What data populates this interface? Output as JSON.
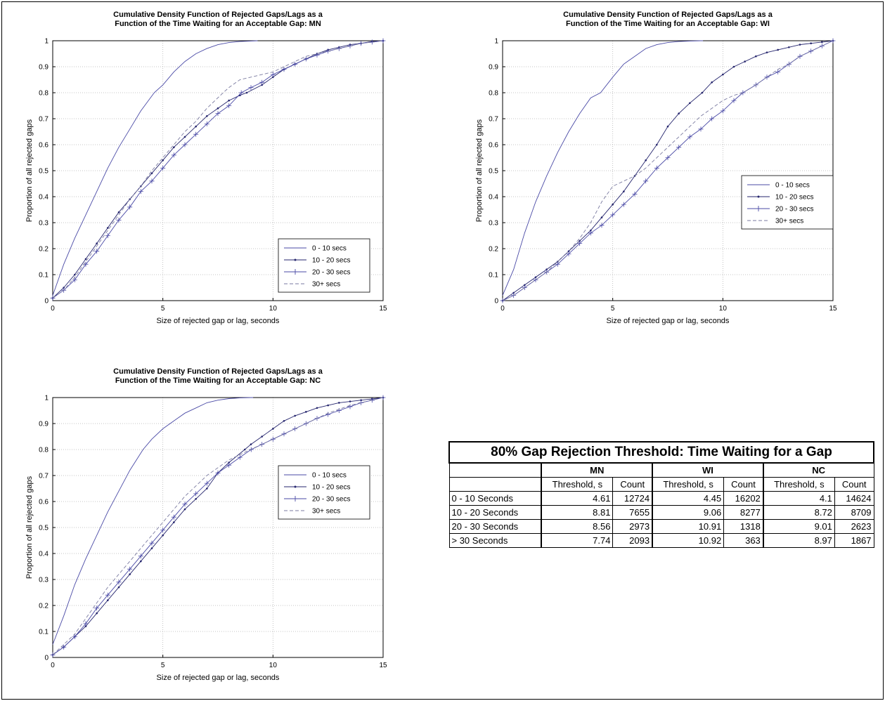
{
  "chart_data": [
    {
      "type": "line",
      "title_lines": [
        "Cumulative Density Function of Rejected Gaps/Lags as a",
        "Function of the Time Waiting for an Acceptable Gap: MN"
      ],
      "xlabel": "Size of rejected gap or lag, seconds",
      "ylabel": "Proportion of all rejected gaps",
      "xlim": [
        0,
        15
      ],
      "ylim": [
        0,
        1
      ],
      "xticks": [
        0,
        5,
        10,
        15
      ],
      "yticks": [
        0,
        0.1,
        0.2,
        0.3,
        0.4,
        0.5,
        0.6,
        0.7,
        0.8,
        0.9,
        1
      ],
      "grid": true,
      "legend_position": "lower-right",
      "series": [
        {
          "name": "0 - 10 secs",
          "x": [
            0,
            0.5,
            1,
            1.5,
            2,
            2.5,
            3,
            3.5,
            4,
            4.61,
            5,
            5.5,
            6,
            6.5,
            7,
            7.5,
            8,
            8.5,
            9,
            9.3
          ],
          "y": [
            0.02,
            0.14,
            0.24,
            0.33,
            0.42,
            0.51,
            0.59,
            0.66,
            0.73,
            0.8,
            0.83,
            0.88,
            0.92,
            0.95,
            0.97,
            0.985,
            0.993,
            0.997,
            0.999,
            1.0
          ]
        },
        {
          "name": "10 - 20 secs",
          "x": [
            0,
            0.5,
            1,
            1.5,
            2,
            2.5,
            3,
            3.5,
            4,
            4.5,
            5,
            5.5,
            6,
            6.5,
            7,
            7.5,
            8,
            8.5,
            8.81,
            9.5,
            10,
            10.5,
            11,
            11.5,
            12,
            12.5,
            13,
            13.5,
            14,
            14.5,
            15
          ],
          "y": [
            0.01,
            0.05,
            0.1,
            0.16,
            0.22,
            0.28,
            0.34,
            0.39,
            0.44,
            0.49,
            0.54,
            0.59,
            0.63,
            0.67,
            0.71,
            0.74,
            0.77,
            0.79,
            0.8,
            0.83,
            0.86,
            0.89,
            0.91,
            0.93,
            0.95,
            0.965,
            0.975,
            0.985,
            0.99,
            0.997,
            1.0
          ]
        },
        {
          "name": "20 - 30 secs",
          "x": [
            0,
            0.5,
            1,
            1.5,
            2,
            2.5,
            3,
            3.5,
            4,
            4.5,
            5,
            5.5,
            6,
            6.5,
            7,
            7.5,
            8,
            8.56,
            9,
            9.5,
            10,
            10.5,
            11,
            11.5,
            12,
            12.5,
            13,
            13.5,
            14,
            14.5,
            15
          ],
          "y": [
            0.01,
            0.04,
            0.08,
            0.14,
            0.19,
            0.25,
            0.31,
            0.36,
            0.42,
            0.46,
            0.51,
            0.56,
            0.6,
            0.64,
            0.68,
            0.72,
            0.75,
            0.8,
            0.82,
            0.84,
            0.87,
            0.89,
            0.91,
            0.93,
            0.945,
            0.96,
            0.97,
            0.98,
            0.99,
            0.995,
            1.0
          ]
        },
        {
          "name": "30+ secs",
          "x": [
            0,
            0.5,
            1,
            1.5,
            2,
            2.5,
            3,
            3.5,
            4,
            4.5,
            5,
            5.5,
            6,
            6.5,
            7,
            7.74,
            8,
            8.5,
            9,
            9.5,
            10,
            10.5,
            11,
            11.5,
            12,
            12.5,
            13,
            13.5,
            14,
            14.5,
            15
          ],
          "y": [
            0.01,
            0.04,
            0.09,
            0.15,
            0.21,
            0.27,
            0.33,
            0.39,
            0.44,
            0.5,
            0.55,
            0.6,
            0.65,
            0.69,
            0.74,
            0.8,
            0.82,
            0.85,
            0.86,
            0.87,
            0.88,
            0.9,
            0.92,
            0.94,
            0.95,
            0.96,
            0.97,
            0.98,
            0.99,
            0.995,
            1.0
          ]
        }
      ]
    },
    {
      "type": "line",
      "title_lines": [
        "Cumulative Density Function of Rejected Gaps/Lags as a",
        "Function of the Time Waiting for an Acceptable Gap: WI"
      ],
      "xlabel": "Size of rejected gap or lag, seconds",
      "ylabel": "Proportion of all rejected gaps",
      "xlim": [
        0,
        15
      ],
      "ylim": [
        0,
        1
      ],
      "xticks": [
        0,
        5,
        10,
        15
      ],
      "yticks": [
        0,
        0.1,
        0.2,
        0.3,
        0.4,
        0.5,
        0.6,
        0.7,
        0.8,
        0.9,
        1
      ],
      "grid": true,
      "legend_position": "right",
      "series": [
        {
          "name": "0 - 10 secs",
          "x": [
            0,
            0.5,
            1,
            1.5,
            2,
            2.5,
            3,
            3.5,
            4,
            4.45,
            5,
            5.5,
            6,
            6.5,
            7,
            7.5,
            8,
            8.5,
            9,
            9.1
          ],
          "y": [
            0.02,
            0.12,
            0.26,
            0.38,
            0.48,
            0.57,
            0.65,
            0.72,
            0.78,
            0.8,
            0.86,
            0.91,
            0.94,
            0.97,
            0.985,
            0.993,
            0.997,
            0.999,
            1.0,
            1.0
          ]
        },
        {
          "name": "10 - 20 secs",
          "x": [
            0,
            0.5,
            1,
            1.5,
            2,
            2.5,
            3,
            3.5,
            4,
            4.5,
            5,
            5.5,
            6,
            6.5,
            7,
            7.5,
            8,
            8.5,
            9.06,
            9.5,
            10,
            10.5,
            11,
            11.5,
            12,
            12.5,
            13,
            13.5,
            14,
            14.5,
            15
          ],
          "y": [
            0.0,
            0.03,
            0.06,
            0.09,
            0.12,
            0.15,
            0.19,
            0.23,
            0.27,
            0.32,
            0.37,
            0.42,
            0.48,
            0.54,
            0.6,
            0.67,
            0.72,
            0.76,
            0.8,
            0.84,
            0.87,
            0.9,
            0.92,
            0.94,
            0.955,
            0.965,
            0.975,
            0.985,
            0.99,
            0.995,
            1.0
          ]
        },
        {
          "name": "20 - 30 secs",
          "x": [
            0,
            0.5,
            1,
            1.5,
            2,
            2.5,
            3,
            3.5,
            4,
            4.5,
            5,
            5.5,
            6,
            6.5,
            7,
            7.5,
            8,
            8.5,
            9,
            9.5,
            10,
            10.5,
            10.91,
            11.5,
            12,
            12.5,
            13,
            13.5,
            14,
            14.5,
            15
          ],
          "y": [
            0.0,
            0.02,
            0.05,
            0.08,
            0.11,
            0.14,
            0.18,
            0.22,
            0.26,
            0.29,
            0.33,
            0.37,
            0.41,
            0.46,
            0.51,
            0.55,
            0.59,
            0.63,
            0.66,
            0.7,
            0.73,
            0.77,
            0.8,
            0.83,
            0.86,
            0.88,
            0.91,
            0.94,
            0.96,
            0.98,
            1.0
          ]
        },
        {
          "name": "30+ secs",
          "x": [
            0,
            0.5,
            1,
            1.5,
            2,
            2.5,
            3,
            3.5,
            4,
            4.5,
            5,
            5.5,
            6,
            6.5,
            7,
            7.5,
            8,
            8.5,
            9,
            9.5,
            10,
            10.5,
            10.92,
            11.5,
            12,
            12.5,
            13,
            13.5,
            14,
            14.5,
            15
          ],
          "y": [
            0.0,
            0.02,
            0.05,
            0.08,
            0.11,
            0.15,
            0.19,
            0.24,
            0.3,
            0.38,
            0.44,
            0.46,
            0.48,
            0.51,
            0.55,
            0.59,
            0.63,
            0.67,
            0.71,
            0.74,
            0.77,
            0.79,
            0.8,
            0.83,
            0.86,
            0.89,
            0.91,
            0.94,
            0.96,
            0.98,
            1.0
          ]
        }
      ]
    },
    {
      "type": "line",
      "title_lines": [
        "Cumulative Density Function of Rejected Gaps/Lags as a",
        "Function of the Time Waiting for an Acceptable Gap: NC"
      ],
      "xlabel": "Size of rejected gap or lag, seconds",
      "ylabel": "Proportion of all rejected gaps",
      "xlim": [
        0,
        15
      ],
      "ylim": [
        0,
        1
      ],
      "xticks": [
        0,
        5,
        10,
        15
      ],
      "yticks": [
        0,
        0.1,
        0.2,
        0.3,
        0.4,
        0.5,
        0.6,
        0.7,
        0.8,
        0.9,
        1
      ],
      "grid": true,
      "legend_position": "right",
      "series": [
        {
          "name": "0 - 10 secs",
          "x": [
            0,
            0.5,
            1,
            1.5,
            2,
            2.5,
            3,
            3.5,
            4.1,
            4.5,
            5,
            5.5,
            6,
            6.5,
            7,
            7.5,
            8,
            8.5,
            9,
            9.1
          ],
          "y": [
            0.05,
            0.16,
            0.28,
            0.38,
            0.47,
            0.56,
            0.64,
            0.72,
            0.8,
            0.84,
            0.88,
            0.91,
            0.94,
            0.96,
            0.98,
            0.99,
            0.996,
            0.999,
            1.0,
            1.0
          ]
        },
        {
          "name": "10 - 20 secs",
          "x": [
            0,
            0.5,
            1,
            1.5,
            2,
            2.5,
            3,
            3.5,
            4,
            4.5,
            5,
            5.5,
            6,
            6.5,
            7,
            7.5,
            8,
            8.72,
            9,
            9.5,
            10,
            10.5,
            11,
            11.5,
            12,
            12.5,
            13,
            13.5,
            14,
            14.5,
            15
          ],
          "y": [
            0.01,
            0.04,
            0.08,
            0.12,
            0.17,
            0.22,
            0.27,
            0.32,
            0.37,
            0.42,
            0.47,
            0.52,
            0.57,
            0.61,
            0.65,
            0.71,
            0.75,
            0.8,
            0.82,
            0.85,
            0.88,
            0.91,
            0.93,
            0.945,
            0.96,
            0.97,
            0.98,
            0.985,
            0.99,
            0.995,
            1.0
          ]
        },
        {
          "name": "20 - 30 secs",
          "x": [
            0,
            0.5,
            1,
            1.5,
            2,
            2.5,
            3,
            3.5,
            4,
            4.5,
            5,
            5.5,
            6,
            6.5,
            7,
            7.5,
            8,
            8.5,
            9.01,
            9.5,
            10,
            10.5,
            11,
            11.5,
            12,
            12.5,
            13,
            13.5,
            14,
            14.5,
            15
          ],
          "y": [
            0.01,
            0.04,
            0.08,
            0.13,
            0.19,
            0.24,
            0.29,
            0.34,
            0.39,
            0.44,
            0.49,
            0.54,
            0.59,
            0.63,
            0.67,
            0.71,
            0.74,
            0.77,
            0.8,
            0.82,
            0.84,
            0.86,
            0.88,
            0.9,
            0.92,
            0.935,
            0.95,
            0.965,
            0.98,
            0.99,
            1.0
          ]
        },
        {
          "name": "30+ secs",
          "x": [
            0,
            0.5,
            1,
            1.5,
            2,
            2.5,
            3,
            3.5,
            4,
            4.5,
            5,
            5.5,
            6,
            6.5,
            7,
            7.5,
            8,
            8.5,
            8.97,
            9.5,
            10,
            10.5,
            11,
            11.5,
            12,
            12.5,
            13,
            13.5,
            14,
            14.5,
            15
          ],
          "y": [
            0.01,
            0.05,
            0.09,
            0.15,
            0.21,
            0.27,
            0.32,
            0.37,
            0.42,
            0.47,
            0.52,
            0.57,
            0.62,
            0.66,
            0.7,
            0.73,
            0.76,
            0.78,
            0.8,
            0.82,
            0.84,
            0.86,
            0.88,
            0.9,
            0.92,
            0.94,
            0.955,
            0.97,
            0.98,
            0.99,
            1.0
          ]
        }
      ]
    }
  ],
  "table": {
    "title": "80% Gap Rejection Threshold: Time Waiting for a Gap",
    "groups": [
      "MN",
      "WI",
      "NC"
    ],
    "subheaders": [
      "Threshold, s",
      "Count",
      "Threshold, s",
      "Count",
      "Threshold, s",
      "Count"
    ],
    "rows": [
      {
        "label": "0 - 10 Seconds",
        "values": [
          "4.61",
          "12724",
          "4.45",
          "16202",
          "4.1",
          "14624"
        ]
      },
      {
        "label": "10 - 20 Seconds",
        "values": [
          "8.81",
          "7655",
          "9.06",
          "8277",
          "8.72",
          "8709"
        ]
      },
      {
        "label": "20 - 30 Seconds",
        "values": [
          "8.56",
          "2973",
          "10.91",
          "1318",
          "9.01",
          "2623"
        ]
      },
      {
        "label": "> 30 Seconds",
        "values": [
          "7.74",
          "2093",
          "10.92",
          "363",
          "8.97",
          "1867"
        ]
      }
    ]
  },
  "colors": {
    "line": "#4a4aa6",
    "line_dark": "#26266e",
    "line_dash": "#7a7aa0",
    "grid": "#b4b4b4"
  }
}
